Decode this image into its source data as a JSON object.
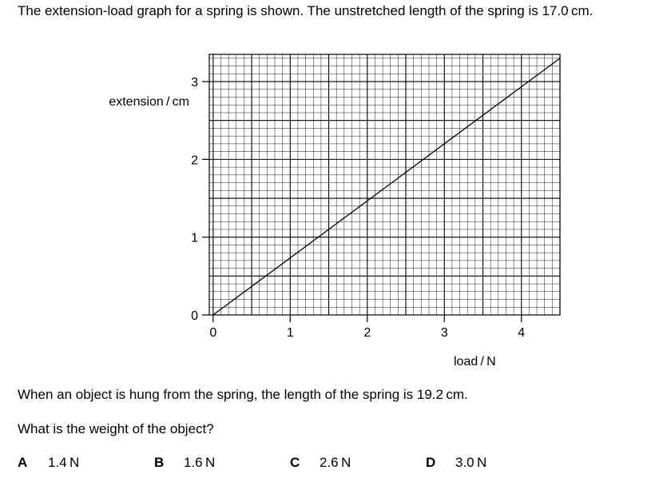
{
  "question": {
    "stem": "The extension-load graph for a spring is shown. The unstretched length of the spring is 17.0 cm.",
    "line1": "When an object is hung from the spring, the length of the spring is 19.2 cm.",
    "line2": "What is the weight of the object?",
    "options": [
      {
        "letter": "A",
        "value": "1.4 N"
      },
      {
        "letter": "B",
        "value": "1.6 N"
      },
      {
        "letter": "C",
        "value": "2.6 N"
      },
      {
        "letter": "D",
        "value": "3.0 N"
      }
    ]
  },
  "chart_data": {
    "type": "line",
    "xlabel": "load / N",
    "ylabel": "extension / cm",
    "xlim": [
      -0.05,
      4.5
    ],
    "ylim": [
      0,
      3.35
    ],
    "xticks": [
      0,
      1,
      2,
      3,
      4
    ],
    "yticks": [
      0,
      1,
      2,
      3
    ],
    "grid": true,
    "minor_grid_per_unit_x": 10,
    "minor_grid_per_unit_y": 10,
    "series": [
      {
        "x": [
          0,
          4.5
        ],
        "y": [
          0,
          3.3
        ],
        "color": "#000000"
      }
    ]
  }
}
